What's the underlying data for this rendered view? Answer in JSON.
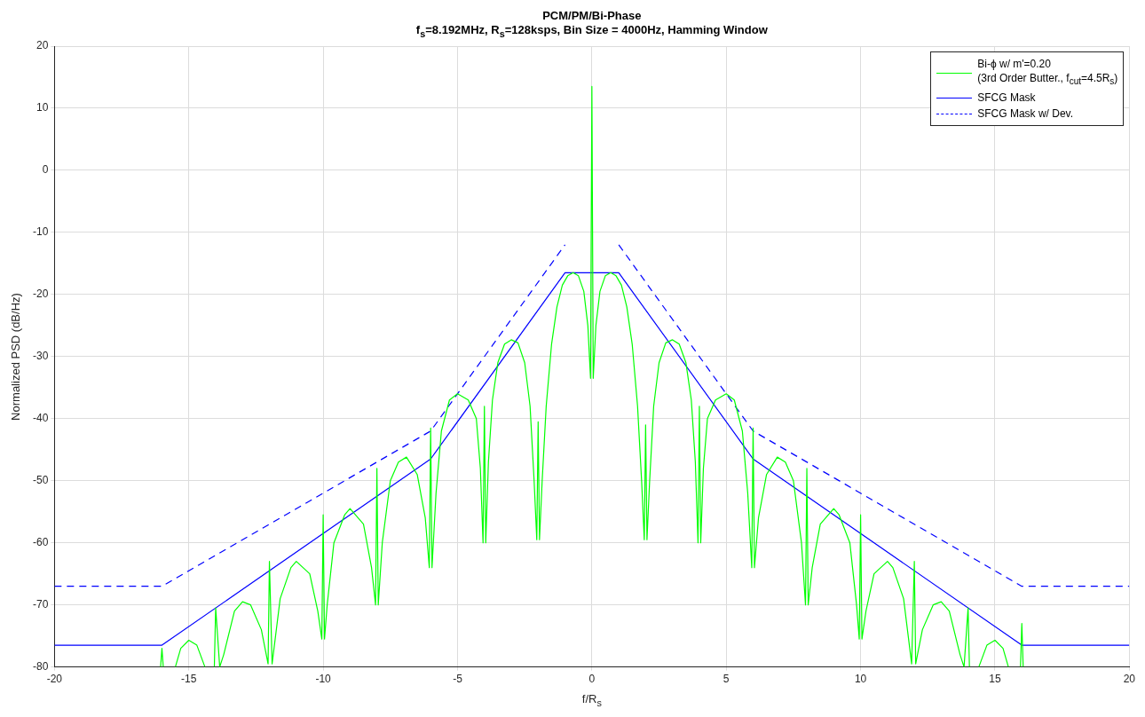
{
  "chart_data": {
    "type": "line",
    "title": "PCM/PM/Bi-Phase",
    "subtitle": "f$_{s}$=8.192MHz, R$_{s}$=128ksps, Bin Size = 4000Hz, Hamming Window",
    "xlabel": "f/R$_{s}$",
    "ylabel": "Normalized PSD (dB/Hz)",
    "xlim": [
      -20,
      20
    ],
    "xticks": [
      -20,
      -15,
      -10,
      -5,
      0,
      5,
      10,
      15,
      20
    ],
    "ylim": [
      -80,
      20
    ],
    "yticks": [
      -80,
      -70,
      -60,
      -50,
      -40,
      -30,
      -20,
      -10,
      0,
      10,
      20
    ],
    "grid": true,
    "legend": "top right",
    "marker": "none",
    "series": [
      {
        "name": "Bi-ϕ w/ m'=0.20\n(3rd Order Butter., f$_{cut}$=4.5R$_{s}$)",
        "color": "#00ff00",
        "line_style": "solid",
        "x": [
          -16.05,
          -16.0,
          -15.95,
          -15.7,
          -15.5,
          -15.3,
          -15.0,
          -14.7,
          -14.4,
          -14.15,
          -14.05,
          -14.0,
          -13.85,
          -13.7,
          -13.3,
          -13.0,
          -12.7,
          -12.3,
          -12.05,
          -12.0,
          -11.9,
          -11.6,
          -11.2,
          -11.0,
          -10.5,
          -10.2,
          -10.05,
          -10.0,
          -9.95,
          -9.85,
          -9.6,
          -9.2,
          -9.0,
          -8.5,
          -8.2,
          -8.05,
          -8.0,
          -7.95,
          -7.8,
          -7.5,
          -7.2,
          -6.9,
          -6.5,
          -6.2,
          -6.05,
          -6.0,
          -5.95,
          -5.8,
          -5.6,
          -5.3,
          -5.0,
          -4.6,
          -4.3,
          -4.15,
          -4.05,
          -4.0,
          -3.95,
          -3.85,
          -3.7,
          -3.5,
          -3.25,
          -3.0,
          -2.75,
          -2.5,
          -2.3,
          -2.15,
          -2.05,
          -2.0,
          -1.95,
          -1.85,
          -1.7,
          -1.5,
          -1.3,
          -1.1,
          -0.9,
          -0.7,
          -0.5,
          -0.3,
          -0.15,
          -0.05,
          0,
          0.05,
          0.15,
          0.3,
          0.5,
          0.7,
          0.9,
          1.1,
          1.3,
          1.5,
          1.7,
          1.85,
          1.95,
          2.0,
          2.05,
          2.15,
          2.3,
          2.5,
          2.75,
          3.0,
          3.25,
          3.5,
          3.7,
          3.85,
          3.95,
          4.0,
          4.05,
          4.15,
          4.3,
          4.6,
          5.0,
          5.3,
          5.6,
          5.8,
          5.95,
          6.0,
          6.05,
          6.2,
          6.5,
          6.9,
          7.2,
          7.5,
          7.8,
          7.95,
          8.0,
          8.05,
          8.2,
          8.5,
          9.0,
          9.2,
          9.6,
          9.85,
          9.95,
          10.0,
          10.05,
          10.2,
          10.5,
          11.0,
          11.2,
          11.6,
          11.9,
          12.0,
          12.05,
          12.3,
          12.7,
          13.0,
          13.3,
          13.7,
          13.85,
          14.0,
          14.05,
          14.15,
          14.4,
          14.7,
          15.0,
          15.3,
          15.5,
          15.7,
          15.95,
          16.0,
          16.05
        ],
        "values": [
          -80,
          -77,
          -80,
          null,
          -80,
          -77,
          -75.7,
          -76.5,
          -80,
          null,
          -80,
          -70.5,
          -80,
          -78,
          -71,
          -69.5,
          -70,
          -74,
          -79.5,
          -63,
          -79.5,
          -69,
          -64,
          -63,
          -65,
          -71,
          -75.5,
          -55.5,
          -75.5,
          -70,
          -60,
          -55.5,
          -54.5,
          -57,
          -64,
          -70,
          -48,
          -70,
          -60,
          -50,
          -47,
          -46.2,
          -49,
          -56,
          -64,
          -41.5,
          -64,
          -52,
          -42,
          -37,
          -36,
          -37,
          -40,
          -48,
          -60,
          -38,
          -60,
          -47,
          -37,
          -31,
          -28,
          -27.3,
          -27.8,
          -31,
          -38,
          -50,
          -59.5,
          -40.5,
          -59.5,
          -50,
          -38,
          -28,
          -22,
          -18.5,
          -17,
          -16.5,
          -17,
          -19.5,
          -25,
          -33.5,
          13.5,
          -33.5,
          -25,
          -19.5,
          -17,
          -16.5,
          -17,
          -18.5,
          -22,
          -28,
          -38,
          -50,
          -59.5,
          -41,
          -59.5,
          -50,
          -38,
          -31,
          -27.8,
          -27.3,
          -28,
          -31,
          -37,
          -47,
          -60,
          -38,
          -60,
          -48,
          -40,
          -37,
          -36,
          -37,
          -42,
          -52,
          -64,
          -41.5,
          -64,
          -56,
          -49,
          -46.2,
          -47,
          -50,
          -60,
          -70,
          -48,
          -70,
          -64,
          -57,
          -54.5,
          -55.5,
          -60,
          -70,
          -75.5,
          -55.5,
          -75.5,
          -71,
          -65,
          -63,
          -64,
          -69,
          -79.5,
          -63,
          -79.5,
          -74,
          -70,
          -69.5,
          -71,
          -78,
          -80,
          -70.5,
          -80,
          null,
          -80,
          -76.5,
          -75.7,
          -77,
          -80,
          null,
          -80,
          -73,
          -80
        ]
      },
      {
        "name": "SFCG Mask",
        "color": "#0000ff",
        "line_style": "solid",
        "x": [
          -20,
          -16,
          -6,
          -1,
          1,
          6,
          16,
          20
        ],
        "values": [
          -76.5,
          -76.5,
          -46.5,
          -16.5,
          -16.5,
          -46.5,
          -76.5,
          -76.5
        ]
      },
      {
        "name": "SFCG Mask w/ Dev.",
        "color": "#0000ff",
        "line_style": "dashed",
        "x": [
          -20,
          -16,
          -6,
          -1,
          0,
          1,
          6,
          16,
          20
        ],
        "values": [
          -67,
          -67,
          -42,
          -12,
          null,
          -12,
          -42,
          -67,
          -67
        ]
      }
    ]
  }
}
